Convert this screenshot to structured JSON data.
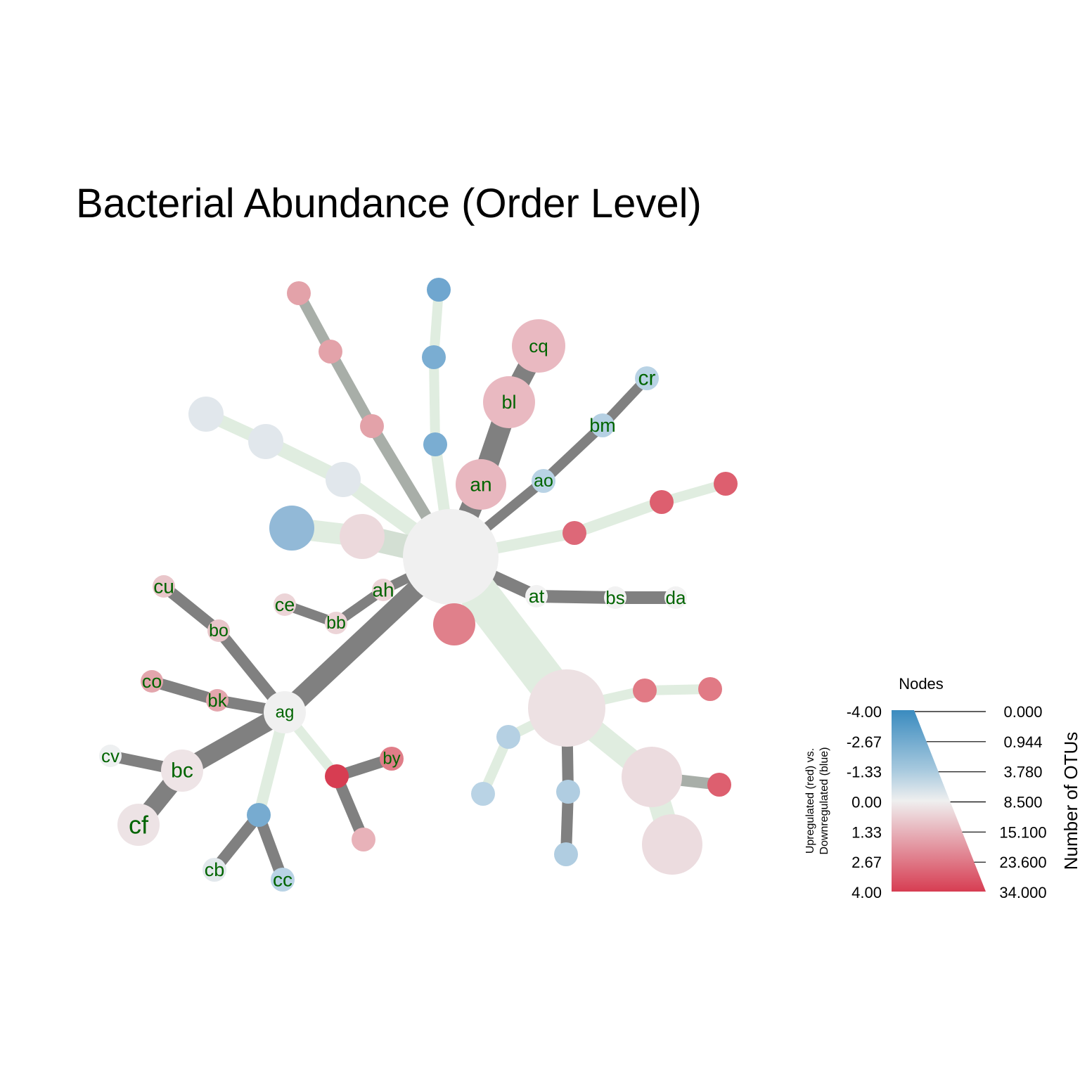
{
  "title": "Bacterial Abundance (Order Level)",
  "colors": {
    "edge_dark": "#808080",
    "edge_medium": "#a8aea8",
    "edge_light": "#e0ede0",
    "label": "#006400",
    "up_strong": "#d73d52",
    "down_strong": "#3a8bbf",
    "neutral": "#f0f0f0"
  },
  "node_labels": {
    "cq": "cq",
    "bl": "bl",
    "an": "an",
    "ao": "ao",
    "bm": "bm",
    "cr": "cr",
    "at": "at",
    "bs": "bs",
    "da": "da",
    "ah": "ah",
    "bb": "bb",
    "ce": "ce",
    "cu": "cu",
    "bo": "bo",
    "co": "co",
    "bk": "bk",
    "ag": "ag",
    "cv": "cv",
    "bc": "bc",
    "cf": "cf",
    "cb": "cb",
    "cc": "cc",
    "by": "by"
  },
  "legend": {
    "title": "Nodes",
    "color_label_line1": "Upregulated (red) vs.",
    "color_label_line2": "Downregulated (blue)",
    "size_label": "Number of OTUs",
    "color_ticks": [
      "-4.00",
      "-2.67",
      "-1.33",
      "0.00",
      "1.33",
      "2.67",
      "4.00"
    ],
    "size_ticks": [
      "0.000",
      "0.944",
      "3.780",
      "8.500",
      "15.100",
      "23.600",
      "34.000"
    ]
  }
}
